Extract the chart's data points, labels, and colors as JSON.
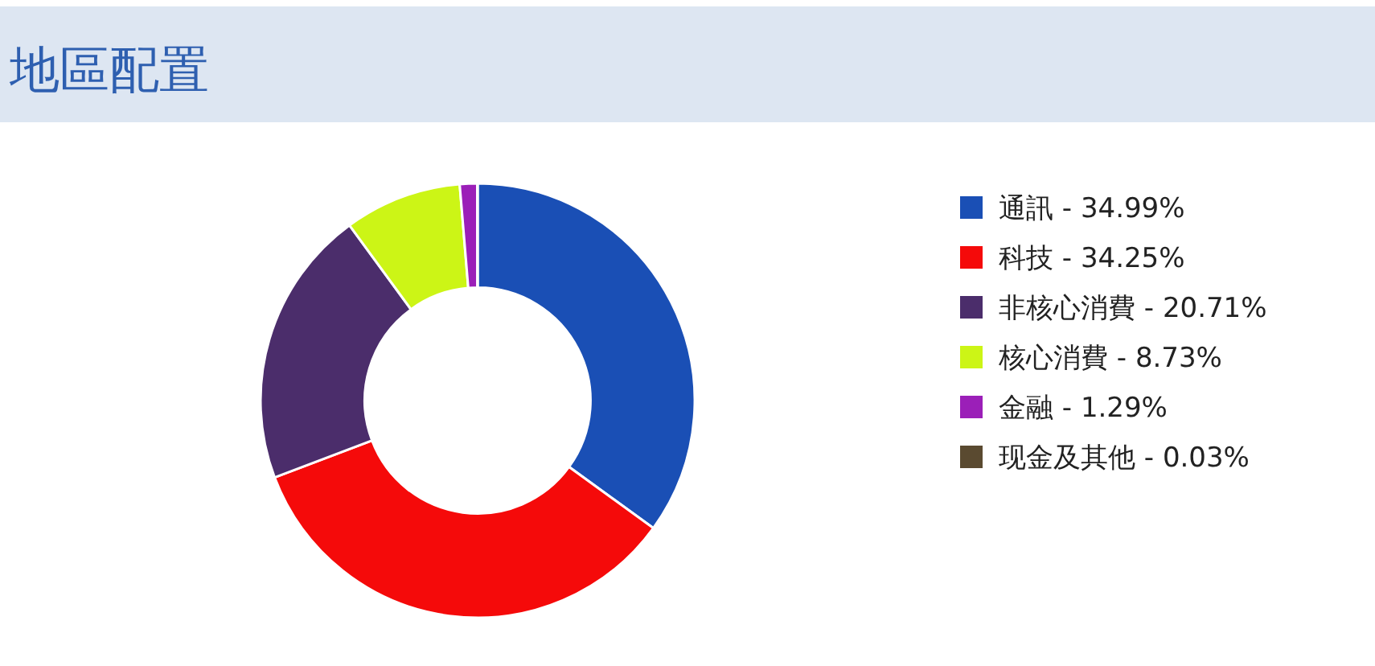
{
  "chart_data": {
    "type": "donut",
    "title": "地區配置",
    "categories": [
      "通訊 - 34.99%",
      "科技 - 34.25%",
      "非核心消費 - 20.71%",
      "核心消費 - 8.73%",
      "金融 - 1.29%",
      "现金及其他 - 0.03%"
    ],
    "values": [
      34.99,
      34.25,
      20.71,
      8.73,
      1.29,
      0.03
    ],
    "colors": [
      "#1a4fb5",
      "#f50a0a",
      "#4b2d6b",
      "#ccf516",
      "#9b1fb8",
      "#5a4a30"
    ],
    "legend": "right"
  }
}
